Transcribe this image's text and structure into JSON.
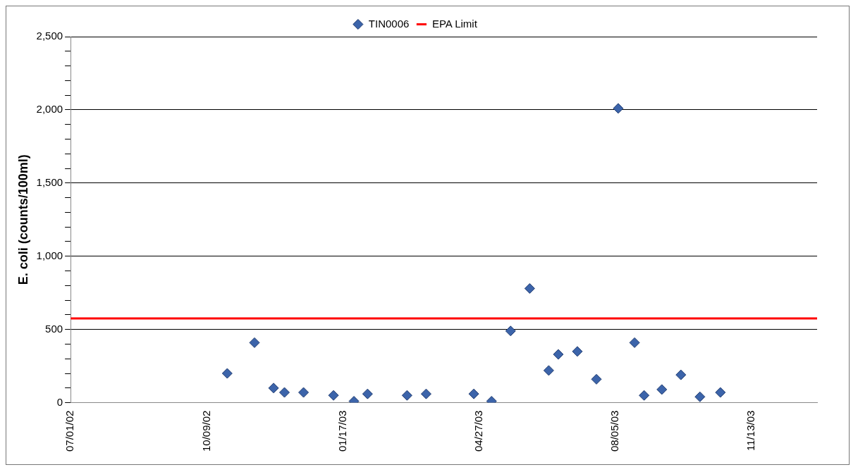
{
  "chart_data": {
    "type": "scatter",
    "ylabel": "E. coli (counts/100ml)",
    "legend": "top",
    "grid": "y",
    "marker": "diamond",
    "xlim": [
      "2002-07-01",
      "2003-12-31"
    ],
    "xticks": [
      {
        "value": "2002-07-01",
        "label": "07/01/02"
      },
      {
        "value": "2002-10-09",
        "label": "10/09/02"
      },
      {
        "value": "2003-01-17",
        "label": "01/17/03"
      },
      {
        "value": "2003-04-27",
        "label": "04/27/03"
      },
      {
        "value": "2003-08-05",
        "label": "08/05/03"
      },
      {
        "value": "2003-11-13",
        "label": "11/13/03"
      }
    ],
    "ylim": [
      0,
      2500
    ],
    "yticks": [
      {
        "value": 0,
        "label": "0"
      },
      {
        "value": 100,
        "label": null
      },
      {
        "value": 200,
        "label": null
      },
      {
        "value": 300,
        "label": null
      },
      {
        "value": 400,
        "label": null
      },
      {
        "value": 500,
        "label": "500"
      },
      {
        "value": 600,
        "label": null
      },
      {
        "value": 700,
        "label": null
      },
      {
        "value": 800,
        "label": null
      },
      {
        "value": 900,
        "label": null
      },
      {
        "value": 1000,
        "label": "1,000"
      },
      {
        "value": 1100,
        "label": null
      },
      {
        "value": 1200,
        "label": null
      },
      {
        "value": 1300,
        "label": null
      },
      {
        "value": 1400,
        "label": null
      },
      {
        "value": 1500,
        "label": "1,500"
      },
      {
        "value": 1600,
        "label": null
      },
      {
        "value": 1700,
        "label": null
      },
      {
        "value": 1800,
        "label": null
      },
      {
        "value": 1900,
        "label": null
      },
      {
        "value": 2000,
        "label": "2,000"
      },
      {
        "value": 2100,
        "label": null
      },
      {
        "value": 2200,
        "label": null
      },
      {
        "value": 2300,
        "label": null
      },
      {
        "value": 2400,
        "label": null
      },
      {
        "value": 2500,
        "label": "2,500"
      }
    ],
    "series": [
      {
        "name": "TIN0006",
        "color": "#3c64aa",
        "x": [
          "2002-10-24",
          "2002-11-13",
          "2002-11-27",
          "2002-12-05",
          "2002-12-19",
          "2003-01-10",
          "2003-01-25",
          "2003-02-04",
          "2003-03-05",
          "2003-03-19",
          "2003-04-23",
          "2003-05-06",
          "2003-05-20",
          "2003-06-03",
          "2003-06-17",
          "2003-06-24",
          "2003-07-08",
          "2003-07-22",
          "2003-08-07",
          "2003-08-19",
          "2003-08-26",
          "2003-09-08",
          "2003-09-22",
          "2003-10-06",
          "2003-10-21"
        ],
        "values": [
          200,
          410,
          100,
          70,
          70,
          50,
          10,
          60,
          50,
          60,
          60,
          10,
          490,
          780,
          220,
          330,
          350,
          160,
          2010,
          410,
          50,
          90,
          190,
          40,
          70
        ]
      }
    ],
    "ref_lines": [
      {
        "axis": "y",
        "value": 575,
        "label": "EPA Limit",
        "color": "#ff0000",
        "line_style": "solid"
      }
    ]
  }
}
